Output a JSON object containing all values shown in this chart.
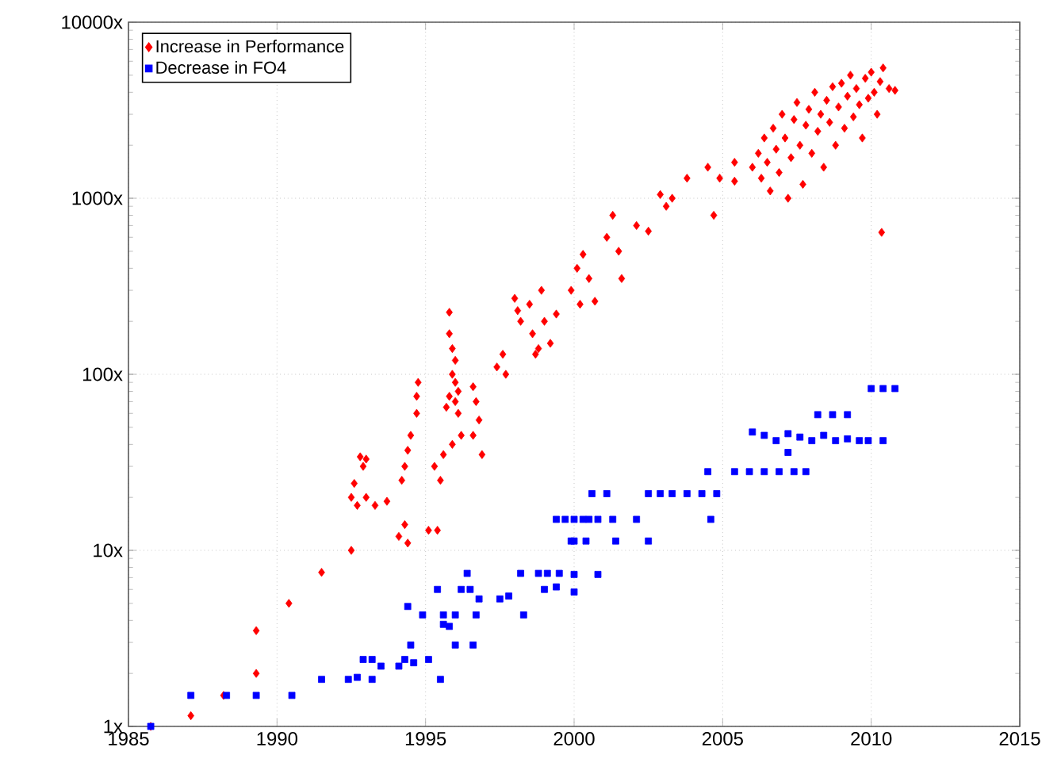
{
  "chart_data": {
    "type": "scatter",
    "log": "y",
    "grid": true,
    "legend": "top left",
    "xlim": [
      1985,
      2015
    ],
    "ylim": [
      1,
      10000
    ],
    "xticks": [
      1985,
      1990,
      1995,
      2000,
      2005,
      2010,
      2015
    ],
    "yticks": [
      {
        "value": 1,
        "label": "1x"
      },
      {
        "value": 10,
        "label": "10x"
      },
      {
        "value": 100,
        "label": "100x"
      },
      {
        "value": 1000,
        "label": "1000x"
      },
      {
        "value": 10000,
        "label": "10000x"
      }
    ],
    "series": [
      {
        "name": "Increase in Performance",
        "color": "#ff0000",
        "marker": "diamond",
        "x": [
          1985.75,
          1987.1,
          1988.2,
          1989.3,
          1989.3,
          1990.4,
          1991.5,
          1992.5,
          1992.5,
          1992.7,
          1993.0,
          1993.3,
          1993.7,
          1992.6,
          1992.9,
          1993.0,
          1992.8,
          1994.1,
          1994.3,
          1994.4,
          1994.2,
          1994.3,
          1994.4,
          1994.5,
          1994.7,
          1994.7,
          1994.75,
          1995.1,
          1995.4,
          1995.3,
          1995.6,
          1995.9,
          1996.2,
          1995.5,
          1995.8,
          1995.8,
          1995.9,
          1996.0,
          1995.9,
          1996.0,
          1996.1,
          1996.0,
          1996.1,
          1995.7,
          1995.8,
          1996.6,
          1996.7,
          1996.8,
          1996.6,
          1996.9,
          1997.4,
          1997.6,
          1997.7,
          1998.0,
          1998.1,
          1998.2,
          1998.5,
          1998.6,
          1998.7,
          1998.8,
          1998.9,
          1999.0,
          1999.2,
          1999.4,
          1999.9,
          2000.1,
          2000.3,
          2000.5,
          2000.7,
          2000.2,
          2001.1,
          2001.3,
          2001.5,
          2001.6,
          2002.1,
          2002.5,
          2002.9,
          2003.1,
          2003.3,
          2003.8,
          2004.5,
          2004.9,
          2004.7,
          2005.4,
          2005.4,
          2006.0,
          2006.2,
          2006.3,
          2006.4,
          2006.5,
          2006.6,
          2006.7,
          2006.8,
          2006.9,
          2007.0,
          2007.1,
          2007.2,
          2007.3,
          2007.4,
          2007.5,
          2007.6,
          2007.7,
          2007.8,
          2007.9,
          2008.0,
          2008.1,
          2008.2,
          2008.3,
          2008.4,
          2008.5,
          2008.6,
          2008.7,
          2008.8,
          2008.9,
          2009.0,
          2009.1,
          2009.2,
          2009.3,
          2009.4,
          2009.5,
          2009.6,
          2009.7,
          2009.8,
          2009.9,
          2010.0,
          2010.1,
          2010.2,
          2010.3,
          2010.4,
          2010.6,
          2010.8,
          2010.35
        ],
        "values": [
          1,
          1.15,
          1.5,
          2.0,
          3.5,
          5,
          7.5,
          10,
          20,
          18,
          20,
          18,
          19,
          24,
          30,
          33,
          34,
          12,
          14,
          11,
          25,
          30,
          37,
          45,
          60,
          75,
          90,
          13,
          13,
          30,
          35,
          40,
          45,
          25,
          225,
          170,
          140,
          120,
          100,
          90,
          80,
          70,
          60,
          65,
          75,
          85,
          70,
          55,
          45,
          35,
          110,
          130,
          100,
          270,
          230,
          200,
          250,
          170,
          130,
          140,
          300,
          200,
          150,
          220,
          300,
          400,
          480,
          350,
          260,
          250,
          600,
          800,
          500,
          350,
          700,
          650,
          1050,
          900,
          1000,
          1300,
          1500,
          1300,
          800,
          1250,
          1600,
          1500,
          1800,
          1300,
          2200,
          1600,
          1100,
          2500,
          1900,
          1400,
          3000,
          2200,
          1000,
          1700,
          2800,
          3500,
          2000,
          1200,
          2600,
          3200,
          1800,
          4000,
          2400,
          3000,
          1500,
          3600,
          2700,
          4300,
          2000,
          3300,
          4500,
          2500,
          3800,
          5000,
          2900,
          4200,
          3400,
          2200,
          4800,
          3700,
          5200,
          4000,
          3000,
          4600,
          5500,
          4200,
          4100,
          640
        ]
      },
      {
        "name": "Decrease in FO4",
        "color": "#0000ff",
        "marker": "square",
        "x": [
          1985.75,
          1987.1,
          1988.3,
          1989.3,
          1990.5,
          1991.5,
          1992.4,
          1992.7,
          1992.9,
          1993.2,
          1993.2,
          1993.5,
          1994.1,
          1994.3,
          1994.5,
          1994.6,
          1994.4,
          1995.1,
          1995.5,
          1994.9,
          1995.4,
          1995.6,
          1995.8,
          1996.0,
          1996.2,
          1995.6,
          1996.0,
          1996.4,
          1996.5,
          1996.7,
          1996.8,
          1996.6,
          1997.5,
          1997.8,
          1998.2,
          1998.3,
          1998.8,
          1999.1,
          1999.5,
          1999.0,
          1999.4,
          1999.7,
          1999.9,
          2000.0,
          2000.0,
          2000.8,
          1999.4,
          2000.0,
          2000.3,
          2000.5,
          2000.8,
          2001.3,
          2002.1,
          2000.0,
          2000.4,
          2001.4,
          2002.5,
          2000.6,
          2001.1,
          2002.5,
          2002.9,
          2003.3,
          2003.8,
          2004.3,
          2004.8,
          2004.5,
          2004.6,
          2005.4,
          2005.9,
          2006.4,
          2006.9,
          2007.4,
          2007.8,
          2006.0,
          2006.4,
          2006.8,
          2007.2,
          2007.6,
          2008.0,
          2008.4,
          2008.8,
          2009.2,
          2009.6,
          2009.9,
          2007.2,
          2008.2,
          2008.7,
          2009.2,
          2010.0,
          2010.4,
          2010.8,
          2010.4
        ],
        "values": [
          1,
          1.5,
          1.5,
          1.5,
          1.5,
          1.85,
          1.85,
          1.9,
          2.4,
          2.4,
          1.85,
          2.2,
          2.2,
          2.4,
          2.9,
          2.3,
          4.8,
          2.4,
          1.85,
          4.3,
          6,
          4.3,
          3.7,
          4.3,
          6,
          3.8,
          2.9,
          7.4,
          6,
          4.3,
          5.3,
          2.9,
          5.3,
          5.5,
          7.4,
          4.3,
          7.4,
          7.4,
          7.4,
          6,
          6.2,
          15,
          11.3,
          7.3,
          5.8,
          7.3,
          15,
          15,
          15,
          15,
          15,
          15,
          15,
          11.3,
          11.3,
          11.3,
          11.3,
          21,
          21,
          21,
          21,
          21,
          21,
          21,
          21,
          28,
          15,
          28,
          28,
          28,
          28,
          28,
          28,
          47,
          45,
          42,
          46,
          44,
          42,
          45,
          42,
          43,
          42,
          42,
          36,
          59,
          59,
          59,
          83,
          83,
          83,
          42
        ]
      }
    ]
  }
}
